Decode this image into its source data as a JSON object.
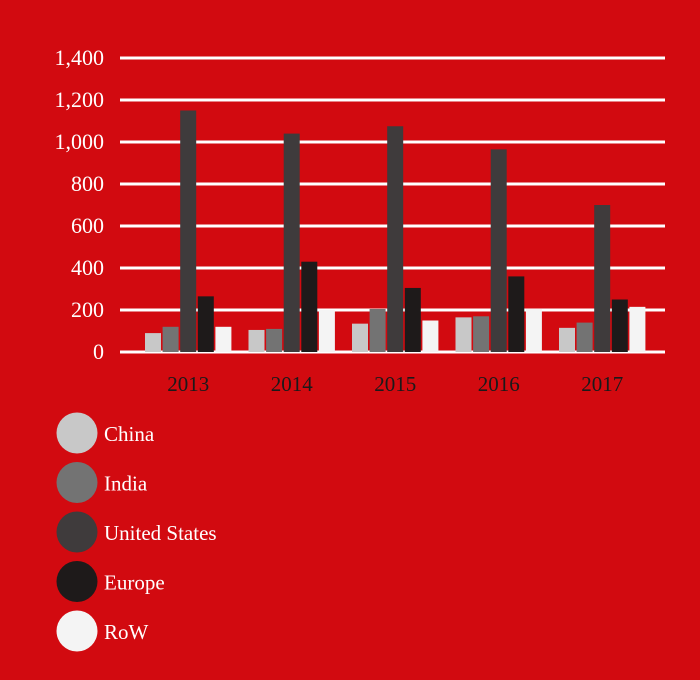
{
  "chart_data": {
    "type": "bar",
    "categories": [
      "2013",
      "2014",
      "2015",
      "2016",
      "2017"
    ],
    "series": [
      {
        "name": "China",
        "color": "#c8c8c8",
        "values": [
          90,
          105,
          135,
          165,
          115
        ]
      },
      {
        "name": "India",
        "color": "#737373",
        "values": [
          120,
          110,
          205,
          170,
          140
        ]
      },
      {
        "name": "United States",
        "color": "#3f3b3c",
        "values": [
          1150,
          1040,
          1075,
          965,
          700
        ]
      },
      {
        "name": "Europe",
        "color": "#1e1a1a",
        "values": [
          265,
          430,
          305,
          360,
          250
        ]
      },
      {
        "name": "RoW",
        "color": "#f4f4f4",
        "values": [
          120,
          200,
          150,
          205,
          215
        ]
      }
    ],
    "ylim": [
      0,
      1400
    ],
    "yticks": [
      0,
      200,
      400,
      600,
      800,
      1000,
      1200,
      1400
    ],
    "ytick_labels": [
      "0",
      "200",
      "400",
      "600",
      "800",
      "1,000",
      "1,200",
      "1,400"
    ],
    "grid": true,
    "legend_position": "bottom-left",
    "title": "",
    "xlabel": "",
    "ylabel": ""
  },
  "colors": {
    "background": "#d20a10",
    "gridline": "#ffffff",
    "tick_label": "#ffffff",
    "category_label": "#1a1a1a"
  }
}
